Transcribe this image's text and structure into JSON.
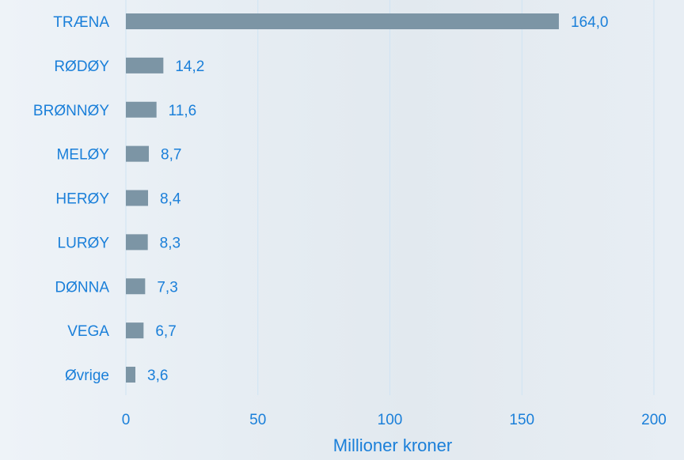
{
  "chart_data": {
    "type": "bar",
    "orientation": "horizontal",
    "title": "",
    "xlabel": "Millioner kroner",
    "ylabel": "",
    "categories": [
      "TRÆNA",
      "RØDØY",
      "BRØNNØY",
      "MELØY",
      "HERØY",
      "LURØY",
      "DØNNA",
      "VEGA",
      "Øvrige"
    ],
    "values": [
      164.0,
      14.2,
      11.6,
      8.7,
      8.4,
      8.3,
      7.3,
      6.7,
      3.6
    ],
    "value_labels": [
      "164,0",
      "14,2",
      "11,6",
      "8,7",
      "8,4",
      "8,3",
      "7,3",
      "6,7",
      "3,6"
    ],
    "xlim": [
      0,
      200
    ],
    "xticks": [
      0,
      50,
      100,
      150,
      200
    ],
    "xtick_labels": [
      "0",
      "50",
      "100",
      "150",
      "200"
    ],
    "grid": true,
    "legend": "none",
    "colors": {
      "bar": "#7c95a5",
      "text": "#1a7fd9",
      "gridline": "#cfe3f3"
    }
  }
}
